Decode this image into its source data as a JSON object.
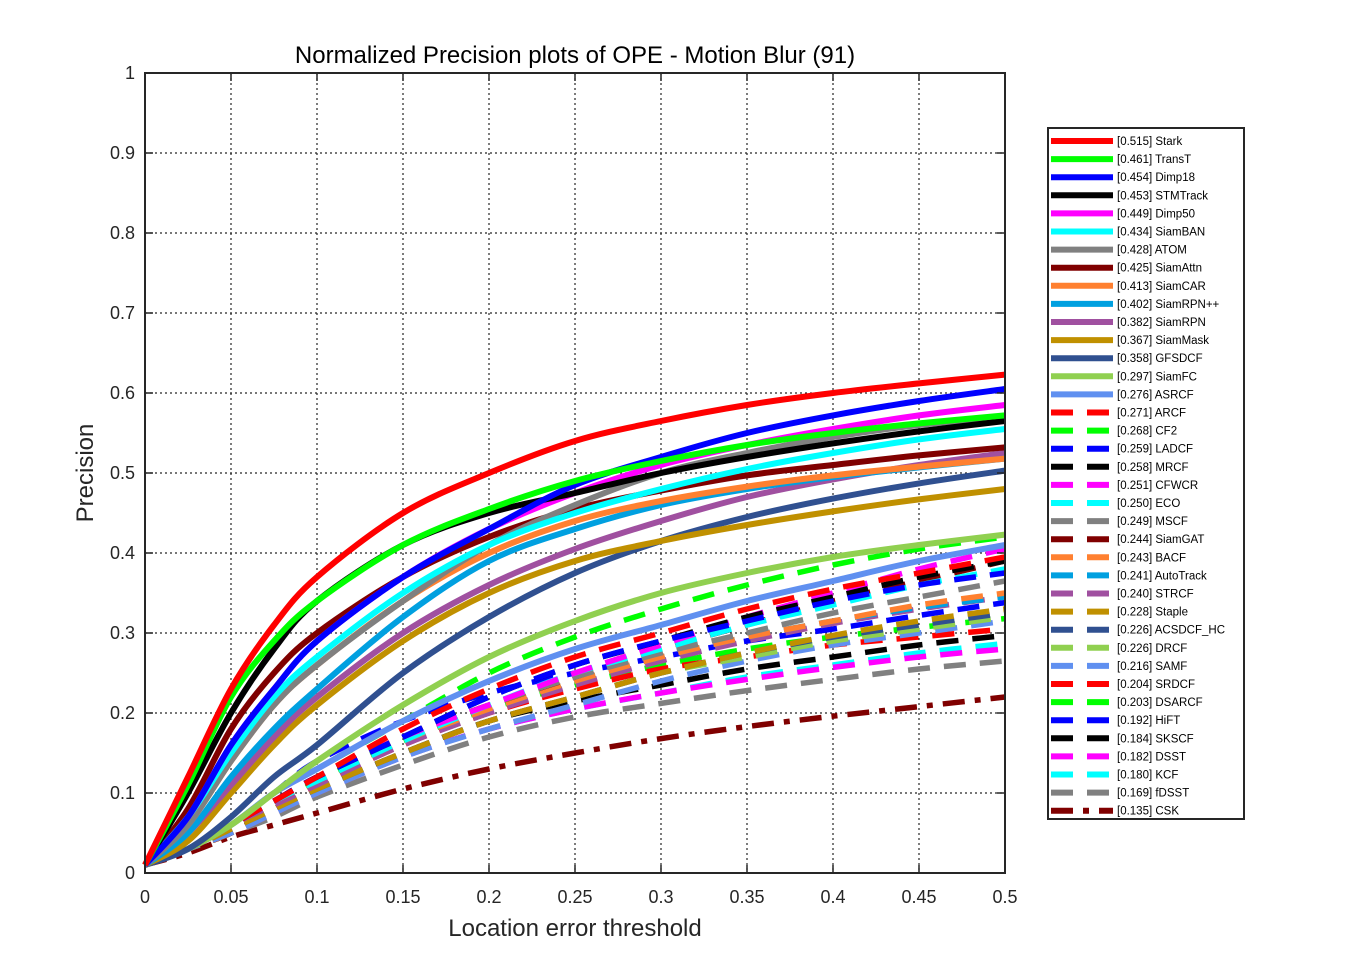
{
  "chart_data": {
    "type": "line",
    "title": "Normalized Precision plots of OPE - Motion Blur (91)",
    "xlabel": "Location error threshold",
    "ylabel": "Precision",
    "xlim": [
      0,
      0.5
    ],
    "ylim": [
      0,
      1
    ],
    "xticks": [
      "0",
      "0.05",
      "0.1",
      "0.15",
      "0.2",
      "0.25",
      "0.3",
      "0.35",
      "0.4",
      "0.45",
      "0.5"
    ],
    "yticks": [
      "0",
      "0.1",
      "0.2",
      "0.3",
      "0.4",
      "0.5",
      "0.6",
      "0.7",
      "0.8",
      "0.9",
      "1"
    ],
    "grid": true,
    "legend_position": "right",
    "x": [
      0,
      0.025,
      0.05,
      0.075,
      0.1,
      0.15,
      0.2,
      0.25,
      0.3,
      0.35,
      0.4,
      0.45,
      0.5
    ],
    "series": [
      {
        "name": "[0.515] Stark",
        "color": "#ff0000",
        "style": "solid",
        "values": [
          0.01,
          0.12,
          0.23,
          0.31,
          0.37,
          0.45,
          0.5,
          0.54,
          0.565,
          0.585,
          0.6,
          0.612,
          0.623
        ]
      },
      {
        "name": "[0.461] TransT",
        "color": "#00ff00",
        "style": "solid",
        "values": [
          0.01,
          0.11,
          0.22,
          0.29,
          0.34,
          0.41,
          0.455,
          0.49,
          0.515,
          0.535,
          0.55,
          0.562,
          0.572
        ]
      },
      {
        "name": "[0.454] Dimp18",
        "color": "#0000ff",
        "style": "solid",
        "values": [
          0.01,
          0.07,
          0.16,
          0.23,
          0.29,
          0.37,
          0.43,
          0.485,
          0.52,
          0.55,
          0.572,
          0.59,
          0.605
        ]
      },
      {
        "name": "[0.453] STMTrack",
        "color": "#000000",
        "style": "solid",
        "values": [
          0.01,
          0.1,
          0.2,
          0.28,
          0.34,
          0.41,
          0.45,
          0.475,
          0.5,
          0.52,
          0.537,
          0.552,
          0.565
        ]
      },
      {
        "name": "[0.449] Dimp50",
        "color": "#ff00ff",
        "style": "solid",
        "values": [
          0.01,
          0.07,
          0.16,
          0.23,
          0.29,
          0.37,
          0.43,
          0.475,
          0.51,
          0.535,
          0.555,
          0.572,
          0.585
        ]
      },
      {
        "name": "[0.434] SiamBAN",
        "color": "#00ffff",
        "style": "solid",
        "values": [
          0.01,
          0.07,
          0.15,
          0.22,
          0.27,
          0.35,
          0.41,
          0.45,
          0.48,
          0.505,
          0.525,
          0.542,
          0.555
        ]
      },
      {
        "name": "[0.428] ATOM",
        "color": "#808080",
        "style": "solid",
        "values": [
          0.01,
          0.06,
          0.14,
          0.21,
          0.26,
          0.34,
          0.41,
          0.46,
          0.5,
          0.525,
          0.545,
          0.56,
          0.57
        ]
      },
      {
        "name": "[0.425] SiamAttn",
        "color": "#800000",
        "style": "solid",
        "values": [
          0.01,
          0.08,
          0.18,
          0.25,
          0.3,
          0.37,
          0.42,
          0.455,
          0.478,
          0.497,
          0.51,
          0.522,
          0.532
        ]
      },
      {
        "name": "[0.413] SiamCAR",
        "color": "#ff8030",
        "style": "solid",
        "values": [
          0.01,
          0.06,
          0.14,
          0.21,
          0.26,
          0.34,
          0.4,
          0.44,
          0.465,
          0.483,
          0.497,
          0.508,
          0.518
        ]
      },
      {
        "name": "[0.402] SiamRPN++",
        "color": "#00a0e0",
        "style": "solid",
        "values": [
          0.01,
          0.05,
          0.12,
          0.18,
          0.23,
          0.32,
          0.39,
          0.43,
          0.46,
          0.48,
          0.495,
          0.507,
          0.518
        ]
      },
      {
        "name": "[0.382] SiamRPN",
        "color": "#a050a0",
        "style": "solid",
        "values": [
          0.01,
          0.05,
          0.11,
          0.17,
          0.22,
          0.3,
          0.36,
          0.405,
          0.44,
          0.47,
          0.492,
          0.51,
          0.525
        ]
      },
      {
        "name": "[0.367] SiamMask",
        "color": "#c09000",
        "style": "solid",
        "values": [
          0.01,
          0.04,
          0.1,
          0.16,
          0.21,
          0.29,
          0.35,
          0.39,
          0.415,
          0.435,
          0.452,
          0.467,
          0.48
        ]
      },
      {
        "name": "[0.358] GFSDCF",
        "color": "#305090",
        "style": "solid",
        "values": [
          0.01,
          0.03,
          0.07,
          0.12,
          0.16,
          0.25,
          0.32,
          0.375,
          0.415,
          0.445,
          0.468,
          0.487,
          0.503
        ]
      },
      {
        "name": "[0.297] SiamFC",
        "color": "#90d050",
        "style": "solid",
        "values": [
          0.01,
          0.03,
          0.06,
          0.1,
          0.14,
          0.21,
          0.27,
          0.315,
          0.35,
          0.375,
          0.395,
          0.41,
          0.423
        ]
      },
      {
        "name": "[0.276] ASRCF",
        "color": "#6090f0",
        "style": "solid",
        "values": [
          0.01,
          0.03,
          0.06,
          0.1,
          0.13,
          0.19,
          0.24,
          0.28,
          0.31,
          0.34,
          0.365,
          0.39,
          0.41
        ]
      },
      {
        "name": "[0.271] ARCF",
        "color": "#ff0000",
        "style": "dashed",
        "values": [
          0.01,
          0.03,
          0.06,
          0.09,
          0.12,
          0.18,
          0.23,
          0.27,
          0.3,
          0.33,
          0.355,
          0.375,
          0.395
        ]
      },
      {
        "name": "[0.268] CF2",
        "color": "#00ff00",
        "style": "dashed",
        "values": [
          0.01,
          0.03,
          0.06,
          0.1,
          0.13,
          0.19,
          0.25,
          0.295,
          0.33,
          0.36,
          0.385,
          0.405,
          0.42
        ]
      },
      {
        "name": "[0.259] LADCF",
        "color": "#0000ff",
        "style": "dashed",
        "values": [
          0.01,
          0.03,
          0.06,
          0.09,
          0.12,
          0.17,
          0.22,
          0.26,
          0.29,
          0.315,
          0.34,
          0.36,
          0.375
        ]
      },
      {
        "name": "[0.258] MRCF",
        "color": "#000000",
        "style": "dashed",
        "values": [
          0.01,
          0.03,
          0.06,
          0.09,
          0.12,
          0.17,
          0.22,
          0.26,
          0.29,
          0.32,
          0.345,
          0.37,
          0.39
        ]
      },
      {
        "name": "[0.251] CFWCR",
        "color": "#ff00ff",
        "style": "dashed",
        "values": [
          0.01,
          0.03,
          0.06,
          0.09,
          0.12,
          0.17,
          0.21,
          0.25,
          0.285,
          0.32,
          0.35,
          0.38,
          0.405
        ]
      },
      {
        "name": "[0.250] ECO",
        "color": "#00ffff",
        "style": "dashed",
        "values": [
          0.01,
          0.03,
          0.06,
          0.09,
          0.115,
          0.165,
          0.21,
          0.25,
          0.28,
          0.31,
          0.335,
          0.36,
          0.38
        ]
      },
      {
        "name": "[0.249] MSCF",
        "color": "#808080",
        "style": "dashed",
        "values": [
          0.01,
          0.03,
          0.06,
          0.09,
          0.12,
          0.17,
          0.21,
          0.245,
          0.275,
          0.3,
          0.325,
          0.345,
          0.365
        ]
      },
      {
        "name": "[0.244] SiamGAT",
        "color": "#800000",
        "style": "dashed",
        "values": [
          0.01,
          0.03,
          0.06,
          0.09,
          0.12,
          0.17,
          0.21,
          0.245,
          0.28,
          0.31,
          0.34,
          0.365,
          0.39
        ]
      },
      {
        "name": "[0.243] BACF",
        "color": "#ff8030",
        "style": "dashed",
        "values": [
          0.01,
          0.03,
          0.06,
          0.09,
          0.115,
          0.165,
          0.205,
          0.24,
          0.27,
          0.295,
          0.315,
          0.335,
          0.35
        ]
      },
      {
        "name": "[0.241] AutoTrack",
        "color": "#00a0e0",
        "style": "dashed",
        "values": [
          0.01,
          0.03,
          0.06,
          0.09,
          0.115,
          0.165,
          0.205,
          0.24,
          0.27,
          0.295,
          0.315,
          0.332,
          0.345
        ]
      },
      {
        "name": "[0.240] STRCF",
        "color": "#a050a0",
        "style": "dashed",
        "values": [
          0.01,
          0.03,
          0.06,
          0.085,
          0.11,
          0.16,
          0.2,
          0.235,
          0.265,
          0.29,
          0.312,
          0.33,
          0.345
        ]
      },
      {
        "name": "[0.228] Staple",
        "color": "#c09000",
        "style": "dashed",
        "values": [
          0.01,
          0.03,
          0.055,
          0.08,
          0.105,
          0.15,
          0.19,
          0.22,
          0.25,
          0.275,
          0.297,
          0.315,
          0.33
        ]
      },
      {
        "name": "[0.226] ACSDCF_HC",
        "color": "#305090",
        "style": "dashed",
        "values": [
          0.01,
          0.03,
          0.055,
          0.08,
          0.105,
          0.15,
          0.19,
          0.22,
          0.25,
          0.275,
          0.295,
          0.31,
          0.325
        ]
      },
      {
        "name": "[0.226] DRCF",
        "color": "#90d050",
        "style": "dashed",
        "values": [
          0.01,
          0.03,
          0.055,
          0.08,
          0.105,
          0.15,
          0.19,
          0.22,
          0.25,
          0.27,
          0.29,
          0.305,
          0.32
        ]
      },
      {
        "name": "[0.216] SAMF",
        "color": "#6090f0",
        "style": "dashed",
        "values": [
          0.01,
          0.03,
          0.05,
          0.075,
          0.1,
          0.145,
          0.18,
          0.21,
          0.24,
          0.265,
          0.285,
          0.3,
          0.315
        ]
      },
      {
        "name": "[0.204] SRDCF",
        "color": "#ff0000",
        "style": "dashed",
        "values": [
          0.01,
          0.03,
          0.05,
          0.08,
          0.11,
          0.16,
          0.2,
          0.23,
          0.255,
          0.27,
          0.285,
          0.295,
          0.305
        ]
      },
      {
        "name": "[0.203] DSARCF",
        "color": "#00ff00",
        "style": "dashed",
        "values": [
          0.01,
          0.03,
          0.05,
          0.08,
          0.115,
          0.165,
          0.205,
          0.235,
          0.26,
          0.28,
          0.295,
          0.307,
          0.318
        ]
      },
      {
        "name": "[0.192] HiFT",
        "color": "#0000ff",
        "style": "dashed",
        "values": [
          0.01,
          0.03,
          0.06,
          0.1,
          0.14,
          0.19,
          0.225,
          0.25,
          0.27,
          0.29,
          0.305,
          0.322,
          0.338
        ]
      },
      {
        "name": "[0.184] SKSCF",
        "color": "#000000",
        "style": "dashed",
        "values": [
          0.01,
          0.03,
          0.05,
          0.08,
          0.105,
          0.15,
          0.19,
          0.215,
          0.235,
          0.255,
          0.27,
          0.285,
          0.297
        ]
      },
      {
        "name": "[0.182] DSST",
        "color": "#ff00ff",
        "style": "dashed",
        "values": [
          0.01,
          0.03,
          0.05,
          0.075,
          0.1,
          0.145,
          0.18,
          0.205,
          0.225,
          0.242,
          0.257,
          0.27,
          0.28
        ]
      },
      {
        "name": "[0.180] KCF",
        "color": "#00ffff",
        "style": "dashed",
        "values": [
          0.01,
          0.03,
          0.05,
          0.075,
          0.1,
          0.145,
          0.18,
          0.205,
          0.225,
          0.245,
          0.26,
          0.275,
          0.287
        ]
      },
      {
        "name": "[0.169] fDSST",
        "color": "#808080",
        "style": "dashed",
        "values": [
          0.01,
          0.03,
          0.05,
          0.07,
          0.095,
          0.135,
          0.17,
          0.195,
          0.212,
          0.228,
          0.242,
          0.255,
          0.265
        ]
      },
      {
        "name": "[0.135] CSK",
        "color": "#800000",
        "style": "dashdot",
        "values": [
          0.01,
          0.025,
          0.045,
          0.06,
          0.075,
          0.105,
          0.13,
          0.15,
          0.168,
          0.183,
          0.196,
          0.208,
          0.22
        ]
      }
    ]
  }
}
